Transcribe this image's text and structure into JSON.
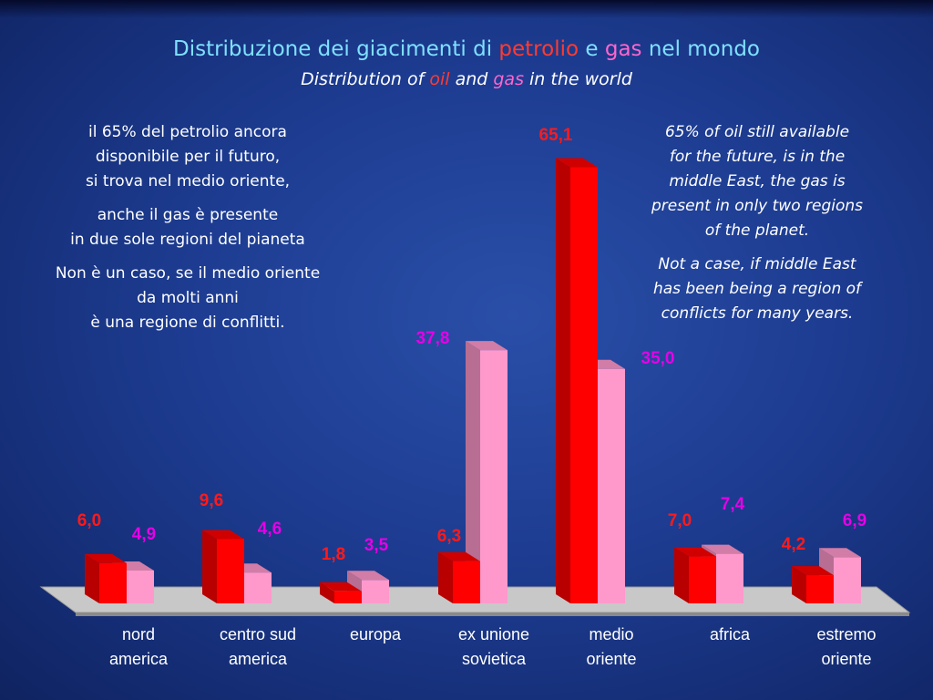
{
  "title": {
    "it_part1": "Distribuzione dei giacimenti di ",
    "it_oil": "petrolio",
    "it_part2": " e ",
    "it_gas": "gas",
    "it_part3": " nel mondo",
    "en_part1": "Distribution of ",
    "en_oil": "oil",
    "en_part2": " and ",
    "en_gas": "gas",
    "en_part3": " in the world"
  },
  "left_text": [
    "il 65% del petrolio ancora\ndisponibile per il futuro,\nsi trova nel medio oriente,",
    "anche il gas è presente\nin due sole regioni del pianeta",
    "Non è un caso, se il medio oriente\nda molti anni\nè una regione di conflitti."
  ],
  "right_text": [
    "65% of oil still available\nfor the future, is in the\nmiddle East, the gas is\npresent in only two regions\nof the planet.",
    "Not a case, if middle East\nhas been being a region of\nconflicts for many years."
  ],
  "colors": {
    "oil": "#ff0000",
    "gas": "#ff99cc",
    "oil_label": "#ff1a1a",
    "gas_label": "#e600e6",
    "floor": "#c8c8c8"
  },
  "chart_data": {
    "type": "bar",
    "categories": [
      "nord\namerica",
      "centro sud\namerica",
      "europa",
      "ex unione\nsovietica",
      "medio\noriente",
      "africa",
      "estremo\noriente"
    ],
    "series": [
      {
        "values": [
          6.0,
          9.6,
          1.8,
          6.3,
          65.1,
          7.0,
          4.2
        ],
        "labels": [
          "6,0",
          "9,6",
          "1,8",
          "6,3",
          "65,1",
          "7,0",
          "4,2"
        ]
      },
      {
        "values": [
          4.9,
          4.6,
          3.5,
          37.8,
          35.0,
          7.4,
          6.9
        ],
        "labels": [
          "4,9",
          "4,6",
          "3,5",
          "37,8",
          "35,0",
          "7,4",
          "6,9"
        ]
      }
    ],
    "ylim": [
      0,
      70
    ],
    "grid": false,
    "legend": "none"
  }
}
